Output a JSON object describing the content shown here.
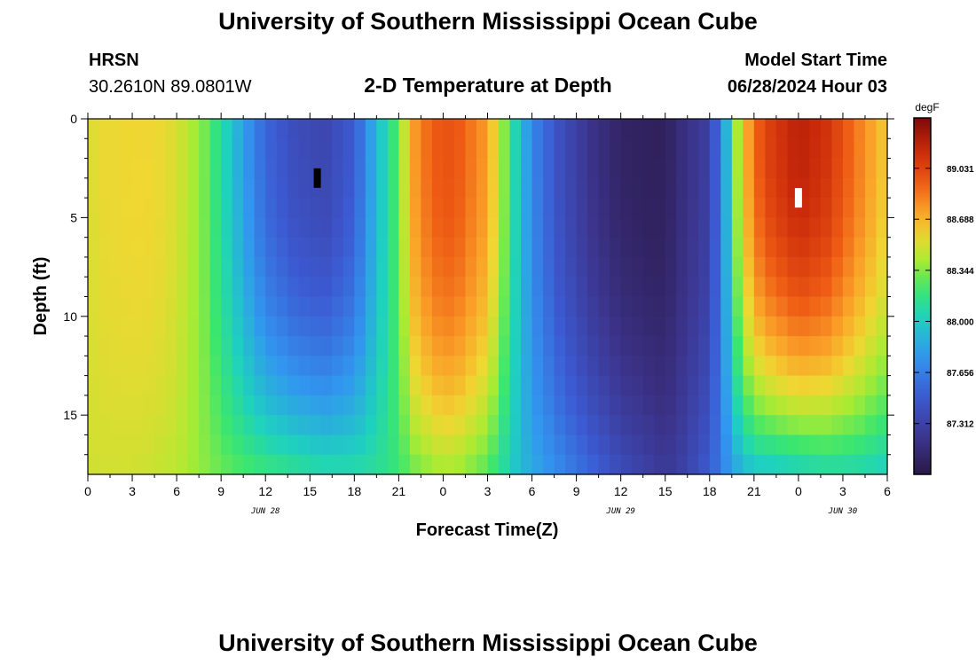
{
  "page": {
    "title_top": "University of Southern Mississippi Ocean Cube",
    "title_bottom": "University of Southern Mississippi Ocean Cube",
    "station": "HRSN",
    "coords": "30.2610N  89.0801W",
    "model_start_label": "Model Start Time",
    "model_start_value": "06/28/2024 Hour 03"
  },
  "chart_data": {
    "type": "heatmap",
    "title": "2-D Temperature at Depth",
    "xlabel": "Forecast Time(Z)",
    "ylabel": "Depth (ft)",
    "x_tick_labels": [
      "0",
      "3",
      "6",
      "9",
      "12",
      "15",
      "18",
      "21",
      "0",
      "3",
      "6",
      "9",
      "12",
      "15",
      "18",
      "21",
      "0",
      "3",
      "6"
    ],
    "x_range_hours": [
      0,
      54
    ],
    "date_labels": [
      {
        "text": "JUN 28",
        "hour": 12
      },
      {
        "text": "JUN 29",
        "hour": 36
      },
      {
        "text": "JUN 30",
        "hour": 51
      }
    ],
    "y_ticks": [
      0,
      5,
      10,
      15
    ],
    "y_range": [
      0,
      18
    ],
    "colorbar": {
      "unit": "degF",
      "min": 86.97,
      "max": 89.37,
      "ticks": [
        89.031,
        88.688,
        88.344,
        88.0,
        87.656,
        87.312
      ]
    },
    "cell_hours": 0.75,
    "depth_levels": 18,
    "time_profile": {
      "hours": [
        0,
        1,
        3,
        4.5,
        6,
        7,
        8,
        9,
        10.5,
        12,
        14,
        16,
        18,
        19.5,
        21,
        22,
        23,
        24,
        25,
        27,
        28,
        29,
        30,
        32,
        34,
        36,
        38,
        39,
        40,
        42,
        43,
        44,
        45,
        46,
        48,
        50,
        52,
        54
      ],
      "surface": [
        88.52,
        88.56,
        88.58,
        88.58,
        88.52,
        88.42,
        88.3,
        88.1,
        87.8,
        87.55,
        87.4,
        87.35,
        87.5,
        87.9,
        88.3,
        88.75,
        88.9,
        88.98,
        88.95,
        88.75,
        88.4,
        88.0,
        87.7,
        87.4,
        87.2,
        87.08,
        87.05,
        87.05,
        87.15,
        87.3,
        87.8,
        88.5,
        88.9,
        89.05,
        89.2,
        89.1,
        88.85,
        88.6
      ],
      "bottom": [
        88.5,
        88.5,
        88.5,
        88.48,
        88.45,
        88.4,
        88.35,
        88.3,
        88.25,
        88.2,
        88.15,
        88.1,
        88.1,
        88.12,
        88.2,
        88.3,
        88.35,
        88.4,
        88.38,
        88.25,
        88.1,
        87.95,
        87.85,
        87.7,
        87.55,
        87.4,
        87.3,
        87.25,
        87.3,
        87.5,
        87.7,
        87.85,
        87.95,
        87.95,
        88.0,
        88.05,
        88.05,
        88.0
      ]
    },
    "markers": [
      {
        "hour": 15.5,
        "depth": 3,
        "color": "#000000"
      },
      {
        "hour": 48.0,
        "depth": 4,
        "color": "#ffffff"
      }
    ]
  }
}
